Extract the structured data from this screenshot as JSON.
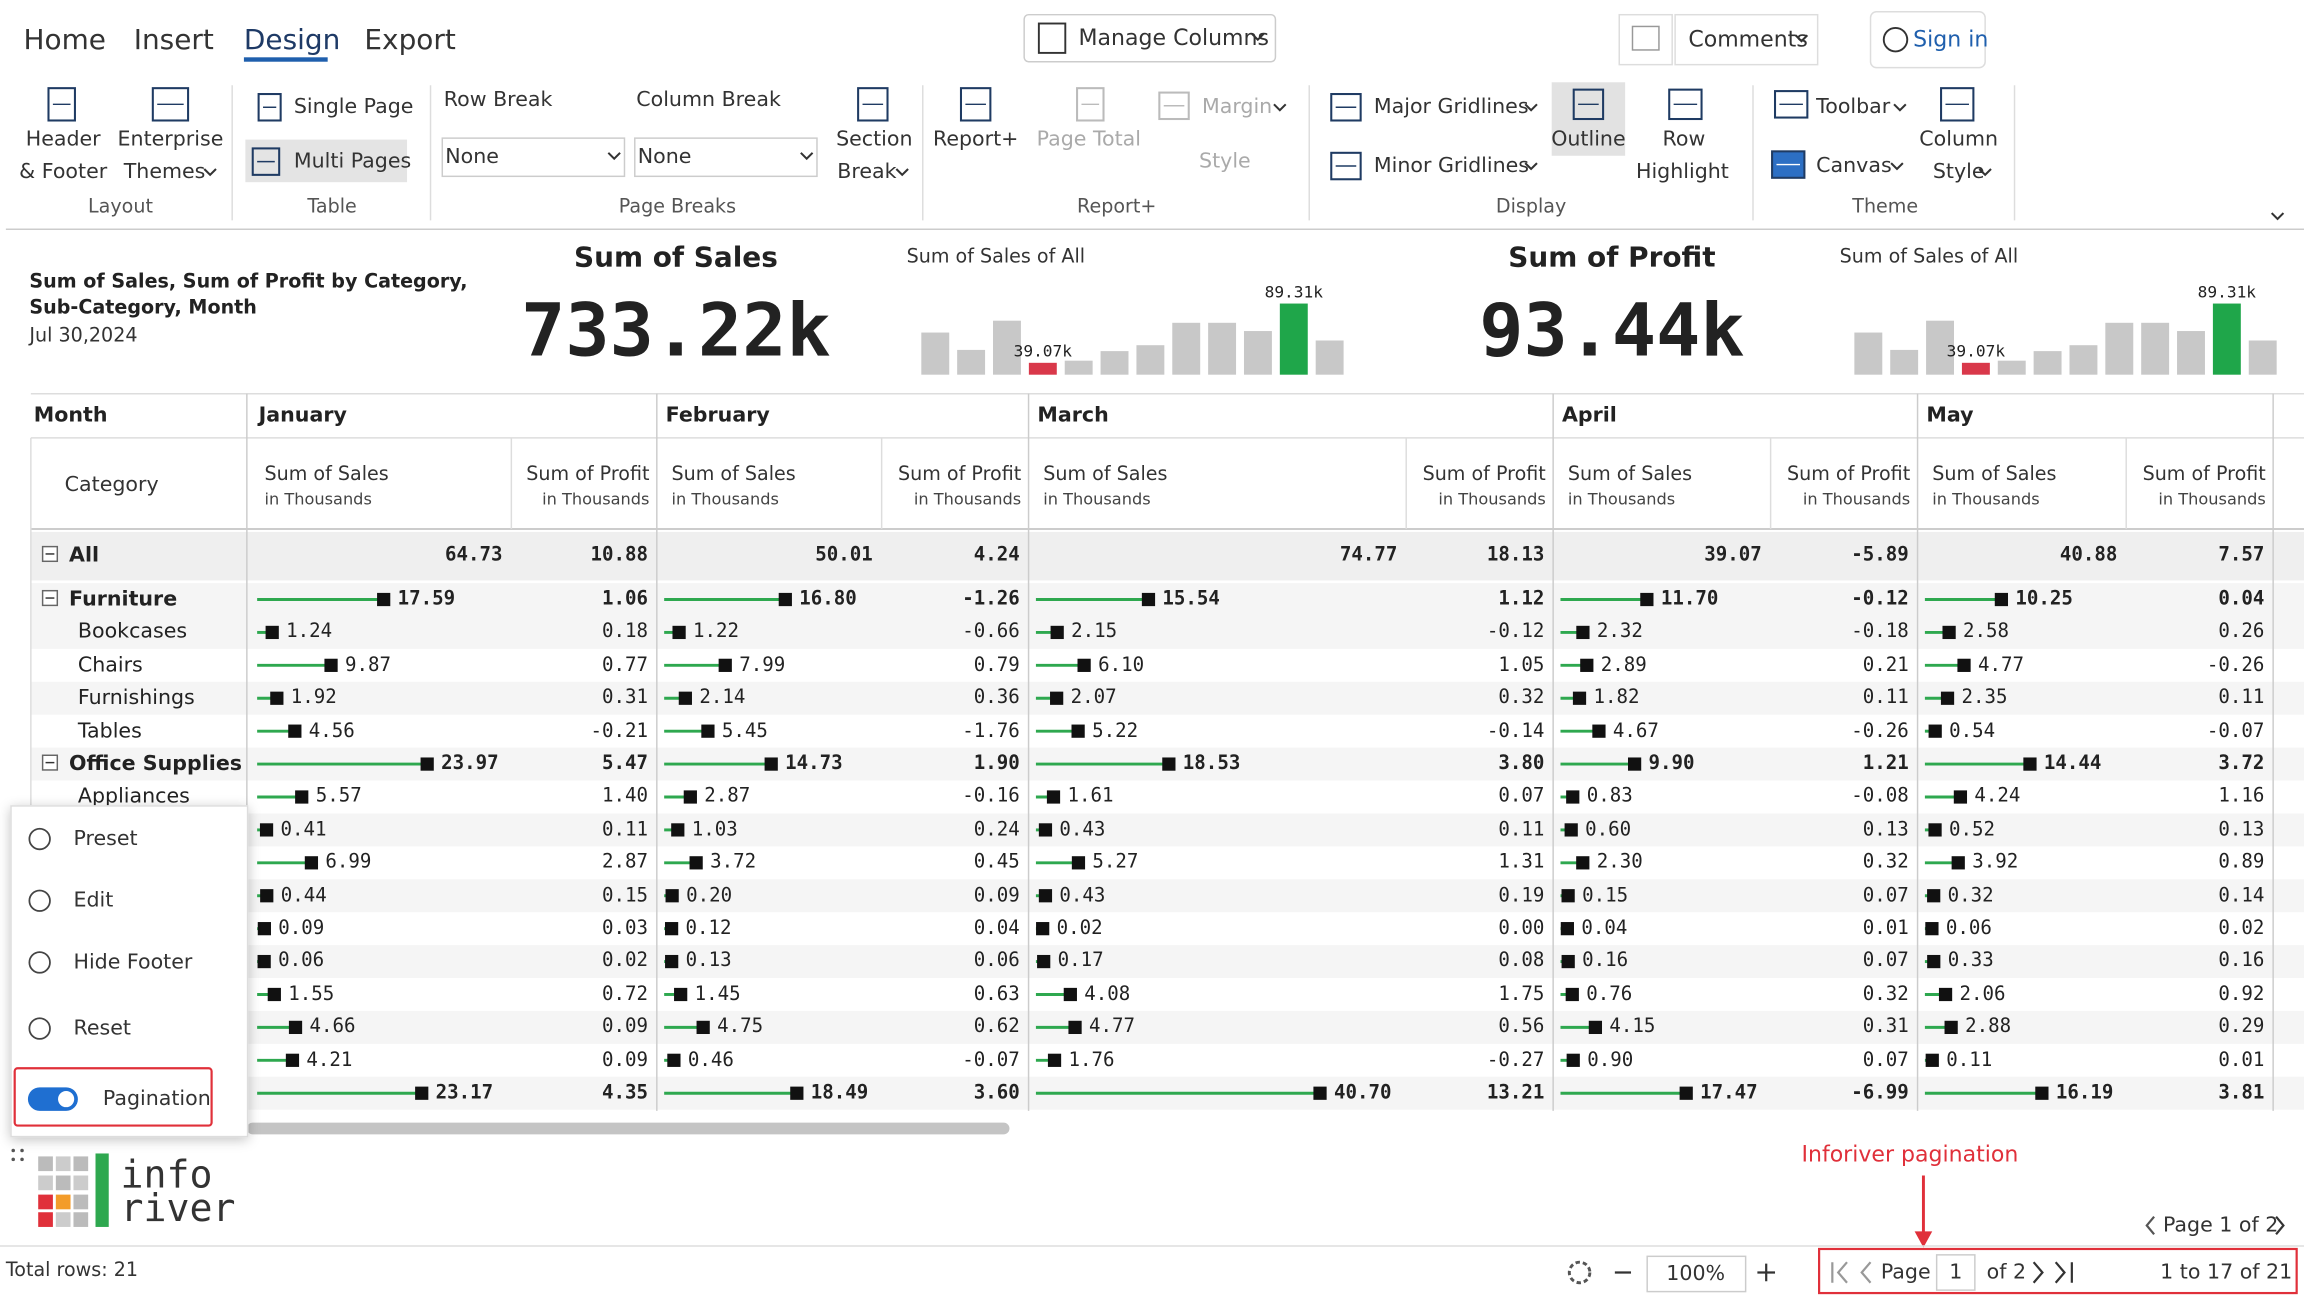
{
  "ribbon": {
    "tabs": [
      "Home",
      "Insert",
      "Design",
      "Export"
    ],
    "active_tab": 2,
    "manage_columns": "Manage Columns",
    "comments": "Comments",
    "sign_in": "Sign in",
    "items": [
      "Header",
      "& Footer",
      "Enterprise",
      "Themes",
      "Single Page",
      "Multi Pages",
      "Row Break",
      "Column Break",
      "None",
      "None",
      "Section",
      "Break",
      "Report+",
      "Page Total",
      "Margin",
      "Style",
      "Major Gridlines",
      "Minor Gridlines",
      "Outline",
      "Row",
      "Highlight",
      "Toolbar",
      "Canvas",
      "Column",
      "Style"
    ],
    "groups": [
      "Layout",
      "Table",
      "Page Breaks",
      "Report+",
      "Display",
      "Theme"
    ]
  },
  "report": {
    "title_lines": [
      "Sum of Sales, Sum of Profit by Category,",
      "Sub-Category, Month"
    ],
    "date": "Jul 30,2024"
  },
  "kpis": [
    {
      "title": "Sum of Sales",
      "value": "733.22k",
      "spark_title": "Sum of Sales of All",
      "spark": [
        64.73,
        50.01,
        74.77,
        39.07,
        40.88,
        49,
        54,
        73,
        73,
        66,
        89.31,
        58
      ],
      "ylim": [
        29,
        100
      ],
      "max_label": "89.31k",
      "min_label": "39.07k",
      "bar_color": "#c8c8c8",
      "max_color": "#1fa64a",
      "min_color": "#d9384a"
    },
    {
      "title": "Sum of Profit",
      "value": "93.44k",
      "spark_title": "Sum of Sales of All",
      "spark": [
        64.73,
        50.01,
        74.77,
        39.07,
        40.88,
        49,
        54,
        73,
        73,
        66,
        89.31,
        58
      ],
      "ylim": [
        29,
        100
      ],
      "max_label": "89.31k",
      "min_label": "39.07k",
      "bar_color": "#c8c8c8",
      "max_color": "#1fa64a",
      "min_color": "#d9384a"
    }
  ],
  "table": {
    "dimension_header": "Month",
    "row_header": "Category",
    "months": [
      "January",
      "February",
      "March",
      "April",
      "May"
    ],
    "measures": [
      "Sum of Sales",
      "Sum of Profit"
    ],
    "measure_unit": "in Thousands",
    "bar_color": "#2ea84f",
    "marker_color": "#111",
    "rows": [
      {
        "label": "All",
        "total": true,
        "cells": [
          [
            "64.73",
            "10.88"
          ],
          [
            "50.01",
            "4.24"
          ],
          [
            "74.77",
            "18.13"
          ],
          [
            "39.07",
            "-5.89"
          ],
          [
            "40.88",
            "7.57"
          ]
        ]
      },
      {
        "label": "Furniture",
        "group": true,
        "cells": [
          [
            "17.59",
            "1.06"
          ],
          [
            "16.80",
            "-1.26"
          ],
          [
            "15.54",
            "1.12"
          ],
          [
            "11.70",
            "-0.12"
          ],
          [
            "10.25",
            "0.04"
          ]
        ]
      },
      {
        "label": "Bookcases",
        "cells": [
          [
            "1.24",
            "0.18"
          ],
          [
            "1.22",
            "-0.66"
          ],
          [
            "2.15",
            "-0.12"
          ],
          [
            "2.32",
            "-0.18"
          ],
          [
            "2.58",
            "0.26"
          ]
        ]
      },
      {
        "label": "Chairs",
        "cells": [
          [
            "9.87",
            "0.77"
          ],
          [
            "7.99",
            "0.79"
          ],
          [
            "6.10",
            "1.05"
          ],
          [
            "2.89",
            "0.21"
          ],
          [
            "4.77",
            "-0.26"
          ]
        ]
      },
      {
        "label": "Furnishings",
        "cells": [
          [
            "1.92",
            "0.31"
          ],
          [
            "2.14",
            "0.36"
          ],
          [
            "2.07",
            "0.32"
          ],
          [
            "1.82",
            "0.11"
          ],
          [
            "2.35",
            "0.11"
          ]
        ]
      },
      {
        "label": "Tables",
        "cells": [
          [
            "4.56",
            "-0.21"
          ],
          [
            "5.45",
            "-1.76"
          ],
          [
            "5.22",
            "-0.14"
          ],
          [
            "4.67",
            "-0.26"
          ],
          [
            "0.54",
            "-0.07"
          ]
        ]
      },
      {
        "label": "Office Supplies",
        "group": true,
        "cells": [
          [
            "23.97",
            "5.47"
          ],
          [
            "14.73",
            "1.90"
          ],
          [
            "18.53",
            "3.80"
          ],
          [
            "9.90",
            "1.21"
          ],
          [
            "14.44",
            "3.72"
          ]
        ]
      },
      {
        "label": "Appliances",
        "cells": [
          [
            "5.57",
            "1.40"
          ],
          [
            "2.87",
            "-0.16"
          ],
          [
            "1.61",
            "0.07"
          ],
          [
            "0.83",
            "-0.08"
          ],
          [
            "4.24",
            "1.16"
          ]
        ]
      },
      {
        "label": null,
        "cells": [
          [
            "0.41",
            "0.11"
          ],
          [
            "1.03",
            "0.24"
          ],
          [
            "0.43",
            "0.11"
          ],
          [
            "0.60",
            "0.13"
          ],
          [
            "0.52",
            "0.13"
          ]
        ]
      },
      {
        "label": null,
        "cells": [
          [
            "6.99",
            "2.87"
          ],
          [
            "3.72",
            "0.45"
          ],
          [
            "5.27",
            "1.31"
          ],
          [
            "2.30",
            "0.32"
          ],
          [
            "3.92",
            "0.89"
          ]
        ]
      },
      {
        "label": null,
        "cells": [
          [
            "0.44",
            "0.15"
          ],
          [
            "0.20",
            "0.09"
          ],
          [
            "0.43",
            "0.19"
          ],
          [
            "0.15",
            "0.07"
          ],
          [
            "0.32",
            "0.14"
          ]
        ]
      },
      {
        "label": null,
        "cells": [
          [
            "0.09",
            "0.03"
          ],
          [
            "0.12",
            "0.04"
          ],
          [
            "0.02",
            "0.00"
          ],
          [
            "0.04",
            "0.01"
          ],
          [
            "0.06",
            "0.02"
          ]
        ]
      },
      {
        "label": null,
        "cells": [
          [
            "0.06",
            "0.02"
          ],
          [
            "0.13",
            "0.06"
          ],
          [
            "0.17",
            "0.08"
          ],
          [
            "0.16",
            "0.07"
          ],
          [
            "0.33",
            "0.16"
          ]
        ]
      },
      {
        "label": null,
        "cells": [
          [
            "1.55",
            "0.72"
          ],
          [
            "1.45",
            "0.63"
          ],
          [
            "4.08",
            "1.75"
          ],
          [
            "0.76",
            "0.32"
          ],
          [
            "2.06",
            "0.92"
          ]
        ]
      },
      {
        "label": null,
        "cells": [
          [
            "4.66",
            "0.09"
          ],
          [
            "4.75",
            "0.62"
          ],
          [
            "4.77",
            "0.56"
          ],
          [
            "4.15",
            "0.31"
          ],
          [
            "2.88",
            "0.29"
          ]
        ]
      },
      {
        "label": null,
        "cells": [
          [
            "4.21",
            "0.09"
          ],
          [
            "0.46",
            "-0.07"
          ],
          [
            "1.76",
            "-0.27"
          ],
          [
            "0.90",
            "0.07"
          ],
          [
            "0.11",
            "0.01"
          ]
        ]
      },
      {
        "label": null,
        "group": true,
        "cells": [
          [
            "23.17",
            "4.35"
          ],
          [
            "18.49",
            "3.60"
          ],
          [
            "40.70",
            "13.21"
          ],
          [
            "17.47",
            "-6.99"
          ],
          [
            "16.19",
            "3.81"
          ]
        ]
      }
    ]
  },
  "menu": {
    "items": [
      "Preset",
      "Edit",
      "Hide Footer",
      "Reset"
    ],
    "toggle": {
      "label": "Pagination",
      "on": true
    }
  },
  "footer": {
    "logo": [
      "info",
      "river"
    ],
    "annotation": "Inforiver pagination",
    "page_summary": "Page 1 of 2",
    "total_rows": "Total rows: 21",
    "zoom": "100%",
    "page_label": "Page",
    "page": "1",
    "of_pages": "of 2",
    "range": "1 to 17 of 21"
  }
}
